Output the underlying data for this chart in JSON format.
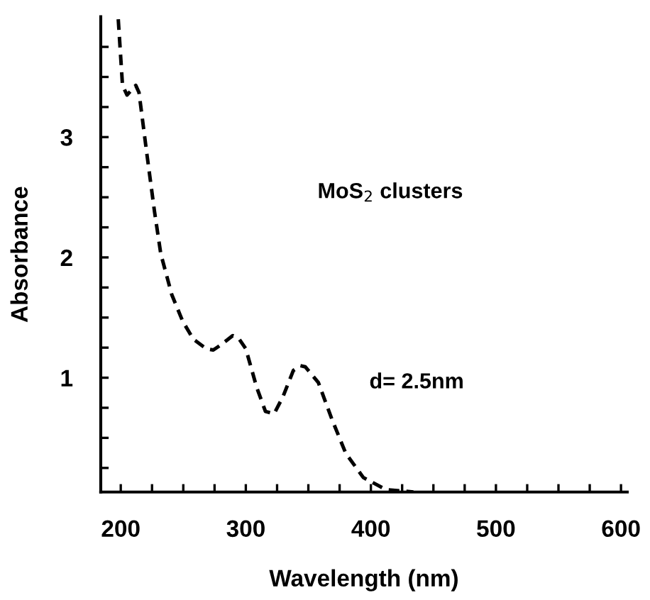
{
  "chart_data": {
    "type": "line",
    "xlabel": "Wavelength (nm)",
    "ylabel": "Absorbance",
    "annotations": [
      "MoS$_{2}$ clusters",
      "d= 2.5nm"
    ],
    "x": [
      198,
      201.4,
      205,
      212,
      214.6,
      221,
      227,
      232,
      240.8,
      249.5,
      258,
      268.6,
      274,
      281,
      289.5,
      294.8,
      300,
      308.7,
      315.7,
      322.6,
      329.6,
      338,
      343.5,
      347.6,
      358,
      369,
      380,
      394,
      412,
      434
    ],
    "series": [
      {
        "color": "#000000",
        "values": [
          3.98,
          3.43,
          3.35,
          3.43,
          3.37,
          2.85,
          2.38,
          2.03,
          1.69,
          1.47,
          1.32,
          1.24,
          1.23,
          1.28,
          1.35,
          1.32,
          1.24,
          0.92,
          0.72,
          0.7,
          0.84,
          1.06,
          1.1,
          1.09,
          0.96,
          0.65,
          0.37,
          0.17,
          0.07,
          0.05
        ]
      }
    ],
    "xlim": [
      184,
      605
    ],
    "ylim": [
      0.05,
      4.0
    ],
    "xticks": [
      200,
      {
        "value": 225,
        "label": null
      },
      {
        "value": 250,
        "label": null
      },
      {
        "value": 275,
        "label": null
      },
      300,
      {
        "value": 325,
        "label": null
      },
      {
        "value": 350,
        "label": null
      },
      {
        "value": 375,
        "label": null
      },
      400,
      {
        "value": 425,
        "label": null
      },
      {
        "value": 450,
        "label": null
      },
      {
        "value": 475,
        "label": null
      },
      500,
      {
        "value": 525,
        "label": null
      },
      {
        "value": 550,
        "label": null
      },
      {
        "value": 575,
        "label": null
      },
      600
    ],
    "yticks": [
      {
        "value": 0.25,
        "label": null
      },
      {
        "value": 0.5,
        "label": null
      },
      {
        "value": 0.75,
        "label": null
      },
      1,
      {
        "value": 1.25,
        "label": null
      },
      {
        "value": 1.5,
        "label": null
      },
      {
        "value": 1.75,
        "label": null
      },
      2,
      {
        "value": 2.25,
        "label": null
      },
      {
        "value": 2.5,
        "label": null
      },
      {
        "value": 2.75,
        "label": null
      },
      3,
      {
        "value": 3.25,
        "label": null
      },
      {
        "value": 3.5,
        "label": null
      },
      {
        "value": 3.75,
        "label": null
      }
    ],
    "grid": false,
    "line_style": "dashed",
    "marker": "none"
  }
}
